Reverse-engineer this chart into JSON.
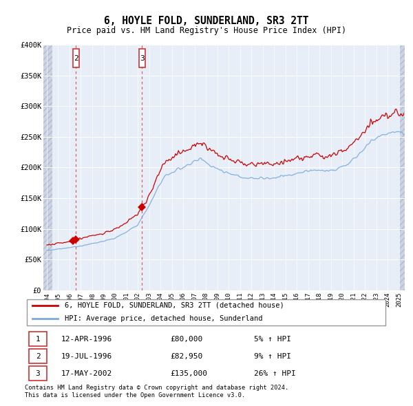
{
  "title": "6, HOYLE FOLD, SUNDERLAND, SR3 2TT",
  "subtitle": "Price paid vs. HM Land Registry's House Price Index (HPI)",
  "legend_property": "6, HOYLE FOLD, SUNDERLAND, SR3 2TT (detached house)",
  "legend_hpi": "HPI: Average price, detached house, Sunderland",
  "footer1": "Contains HM Land Registry data © Crown copyright and database right 2024.",
  "footer2": "This data is licensed under the Open Government Licence v3.0.",
  "sale_dates_decimal": [
    1996.28,
    1996.55,
    2002.38
  ],
  "sale_prices": [
    80000,
    82950,
    135000
  ],
  "sale_labels": [
    "1",
    "2",
    "3"
  ],
  "show_box_in_chart": [
    false,
    true,
    true
  ],
  "ylim": [
    0,
    400000
  ],
  "yticks": [
    0,
    50000,
    100000,
    150000,
    200000,
    250000,
    300000,
    350000,
    400000
  ],
  "ytick_labels": [
    "£0",
    "£50K",
    "£100K",
    "£150K",
    "£200K",
    "£250K",
    "£300K",
    "£350K",
    "£400K"
  ],
  "xlim_start": 1993.7,
  "xlim_end": 2025.5,
  "hatch_left_end": 1994.5,
  "hatch_right_start": 2025.0,
  "line_color_property": "#cc0000",
  "line_color_hpi": "#7aaadd",
  "marker_color": "#cc0000",
  "bg_color": "#e8eef8",
  "grid_color": "#ffffff",
  "dashed_line_color": "#dd4444",
  "box_color": "#cc3333",
  "sale_table": [
    {
      "label": "1",
      "date": "12-APR-1996",
      "price": "£80,000",
      "pct": "5% ↑ HPI"
    },
    {
      "label": "2",
      "date": "19-JUL-1996",
      "price": "£82,950",
      "pct": "9% ↑ HPI"
    },
    {
      "label": "3",
      "date": "17-MAY-2002",
      "price": "£135,000",
      "pct": "26% ↑ HPI"
    }
  ]
}
